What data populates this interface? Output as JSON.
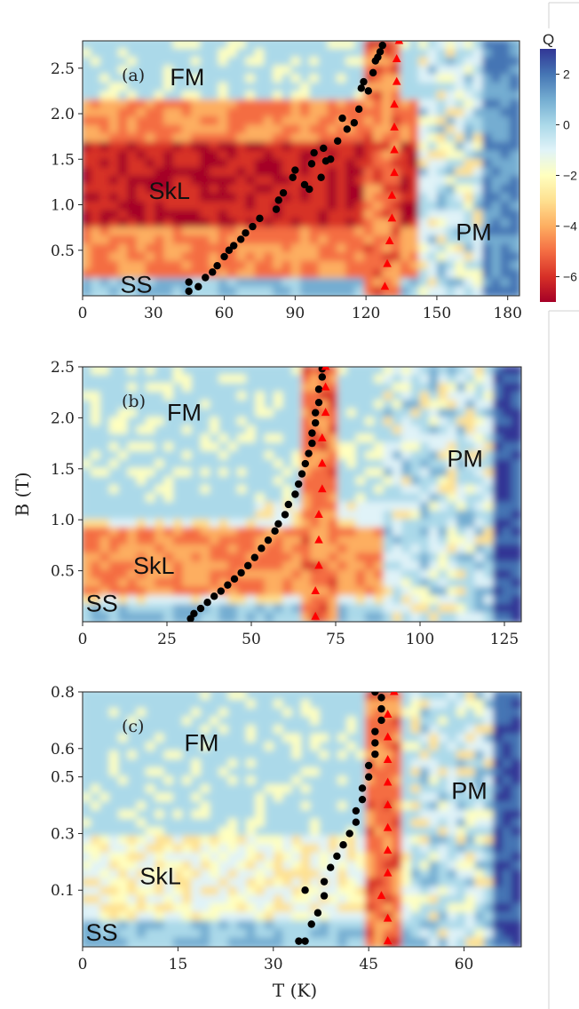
{
  "colors": {
    "scale": [
      "#a50026",
      "#d73027",
      "#f46d43",
      "#fdae61",
      "#fee090",
      "#ffffbf",
      "#e0f3f8",
      "#abd9e9",
      "#74add1",
      "#4575b4",
      "#313695"
    ],
    "phase_boundary_1": "#000000",
    "phase_boundary_2": "#ff0000"
  },
  "colorbar": {
    "label": "Q",
    "min": -7,
    "max": 3,
    "ticks": [
      "2",
      "0",
      "−2",
      "−4",
      "−6"
    ],
    "tick_values": [
      2,
      0,
      -2,
      -4,
      -6
    ]
  },
  "chart_data": [
    {
      "type": "heatmap",
      "panel_label": "(a)",
      "xlabel": "",
      "ylabel": "",
      "xlim": [
        0,
        185
      ],
      "ylim": [
        0,
        2.8
      ],
      "xticks": [
        0,
        30,
        60,
        90,
        120,
        150,
        180
      ],
      "yticks": [
        0.5,
        1.0,
        1.5,
        2.0,
        2.5
      ],
      "phase_labels": [
        {
          "text": "FM",
          "x": 37,
          "y": 2.4
        },
        {
          "text": "SkL",
          "x": 28,
          "y": 1.15
        },
        {
          "text": "PM",
          "x": 158,
          "y": 0.7
        },
        {
          "text": "SS",
          "x": 16,
          "y": 0.12
        }
      ],
      "regions": {
        "ss_top": 0.18,
        "fm_bottom": 2.1,
        "skl_peak": 1.2,
        "transition_x": [
          118,
          135
        ],
        "pm_x": 142
      },
      "series": [
        {
          "marker": "circle",
          "values": [
            [
              45,
              0.05
            ],
            [
              45,
              0.15
            ],
            [
              49,
              0.1
            ],
            [
              52,
              0.2
            ],
            [
              55,
              0.26
            ],
            [
              57,
              0.33
            ],
            [
              60,
              0.43
            ],
            [
              62,
              0.5
            ],
            [
              64,
              0.55
            ],
            [
              67,
              0.62
            ],
            [
              69,
              0.69
            ],
            [
              72,
              0.76
            ],
            [
              75,
              0.85
            ],
            [
              82,
              0.95
            ],
            [
              83,
              1.05
            ],
            [
              85,
              1.13
            ],
            [
              89,
              1.3
            ],
            [
              90,
              1.38
            ],
            [
              94,
              1.22
            ],
            [
              96,
              1.17
            ],
            [
              97,
              1.45
            ],
            [
              98,
              1.57
            ],
            [
              101,
              1.3
            ],
            [
              102,
              1.62
            ],
            [
              103,
              1.48
            ],
            [
              105,
              1.5
            ],
            [
              108,
              1.7
            ],
            [
              110,
              1.95
            ],
            [
              112,
              1.83
            ],
            [
              115,
              1.9
            ],
            [
              117,
              2.05
            ],
            [
              118,
              2.28
            ],
            [
              119,
              2.35
            ],
            [
              121,
              2.25
            ],
            [
              123,
              2.45
            ],
            [
              124,
              2.58
            ],
            [
              125,
              2.62
            ],
            [
              126,
              2.68
            ],
            [
              127,
              2.75
            ]
          ]
        },
        {
          "marker": "triangle",
          "values": [
            [
              128,
              0.1
            ],
            [
              129,
              0.35
            ],
            [
              130,
              0.6
            ],
            [
              131,
              0.85
            ],
            [
              131,
              1.1
            ],
            [
              132,
              1.35
            ],
            [
              132,
              1.6
            ],
            [
              132,
              1.85
            ],
            [
              132,
              2.1
            ],
            [
              133,
              2.35
            ],
            [
              133,
              2.6
            ],
            [
              134,
              2.8
            ]
          ]
        }
      ]
    },
    {
      "type": "heatmap",
      "panel_label": "(b)",
      "xlabel": "",
      "ylabel": "B (T)",
      "xlim": [
        0,
        130
      ],
      "ylim": [
        0,
        2.5
      ],
      "xticks": [
        0,
        25,
        50,
        75,
        100,
        125
      ],
      "yticks": [
        0.5,
        1.0,
        1.5,
        2.0,
        2.5
      ],
      "phase_labels": [
        {
          "text": "FM",
          "x": 25,
          "y": 2.05
        },
        {
          "text": "SkL",
          "x": 15,
          "y": 0.55
        },
        {
          "text": "PM",
          "x": 108,
          "y": 1.6
        },
        {
          "text": "SS",
          "x": 1,
          "y": 0.18
        }
      ],
      "regions": {
        "ss_top": 0.15,
        "fm_bottom": 1.2,
        "skl_peak": 0.6,
        "transition_x": [
          66,
          76
        ],
        "pm_x": 90
      },
      "series": [
        {
          "marker": "circle",
          "values": [
            [
              32,
              0.03
            ],
            [
              33,
              0.08
            ],
            [
              35,
              0.13
            ],
            [
              37,
              0.19
            ],
            [
              39,
              0.25
            ],
            [
              41,
              0.3
            ],
            [
              43,
              0.36
            ],
            [
              45,
              0.42
            ],
            [
              47,
              0.48
            ],
            [
              49,
              0.55
            ],
            [
              51,
              0.63
            ],
            [
              53,
              0.72
            ],
            [
              55,
              0.8
            ],
            [
              57,
              0.89
            ],
            [
              58,
              0.96
            ],
            [
              60,
              1.05
            ],
            [
              61,
              1.15
            ],
            [
              63,
              1.25
            ],
            [
              64,
              1.35
            ],
            [
              65,
              1.45
            ],
            [
              66,
              1.55
            ],
            [
              67,
              1.65
            ],
            [
              68,
              1.75
            ],
            [
              68,
              1.85
            ],
            [
              69,
              1.95
            ],
            [
              69,
              2.05
            ],
            [
              70,
              2.15
            ],
            [
              70,
              2.28
            ],
            [
              71,
              2.4
            ],
            [
              71,
              2.48
            ]
          ]
        },
        {
          "marker": "triangle",
          "values": [
            [
              69,
              0.05
            ],
            [
              69,
              0.3
            ],
            [
              70,
              0.55
            ],
            [
              70,
              0.8
            ],
            [
              70,
              1.05
            ],
            [
              71,
              1.3
            ],
            [
              71,
              1.55
            ],
            [
              71,
              1.8
            ],
            [
              72,
              2.05
            ],
            [
              72,
              2.3
            ],
            [
              72,
              2.5
            ]
          ]
        }
      ]
    },
    {
      "type": "heatmap",
      "panel_label": "(c)",
      "xlabel": "T (K)",
      "ylabel": "",
      "xlim": [
        0,
        69
      ],
      "ylim": [
        -0.1,
        0.8
      ],
      "xticks": [
        0,
        15,
        30,
        45,
        60
      ],
      "yticks": [
        0.1,
        0.3,
        0.5,
        0.6,
        0.8
      ],
      "ytick_labels": [
        "0.1",
        "0.3",
        "0.5",
        "0.6",
        "0.8"
      ],
      "phase_labels": [
        {
          "text": "FM",
          "x": 16,
          "y": 0.62
        },
        {
          "text": "SkL",
          "x": 9,
          "y": 0.15
        },
        {
          "text": "PM",
          "x": 58,
          "y": 0.45
        },
        {
          "text": "SS",
          "x": 0.5,
          "y": -0.05
        }
      ],
      "regions": {
        "ss_top": -0.02,
        "fm_bottom": 0.3,
        "skl_peak": 0.15,
        "transition_x": [
          44,
          51
        ],
        "pm_x": 52
      },
      "series": [
        {
          "marker": "circle",
          "values": [
            [
              34,
              -0.08
            ],
            [
              35,
              -0.08
            ],
            [
              36,
              -0.02
            ],
            [
              37,
              0.02
            ],
            [
              38,
              0.08
            ],
            [
              35,
              0.1
            ],
            [
              38,
              0.13
            ],
            [
              39,
              0.18
            ],
            [
              40,
              0.22
            ],
            [
              41,
              0.26
            ],
            [
              42,
              0.3
            ],
            [
              43,
              0.34
            ],
            [
              43,
              0.38
            ],
            [
              44,
              0.42
            ],
            [
              44,
              0.46
            ],
            [
              45,
              0.5
            ],
            [
              45,
              0.54
            ],
            [
              46,
              0.58
            ],
            [
              46,
              0.62
            ],
            [
              46,
              0.66
            ],
            [
              47,
              0.7
            ],
            [
              47,
              0.74
            ],
            [
              47,
              0.78
            ],
            [
              46,
              0.8
            ]
          ]
        },
        {
          "marker": "triangle",
          "values": [
            [
              48,
              -0.08
            ],
            [
              48,
              0.0
            ],
            [
              47,
              0.08
            ],
            [
              48,
              0.16
            ],
            [
              48,
              0.24
            ],
            [
              48,
              0.32
            ],
            [
              48,
              0.4
            ],
            [
              48,
              0.48
            ],
            [
              48,
              0.56
            ],
            [
              48,
              0.64
            ],
            [
              48,
              0.72
            ],
            [
              49,
              0.8
            ]
          ]
        }
      ]
    }
  ]
}
